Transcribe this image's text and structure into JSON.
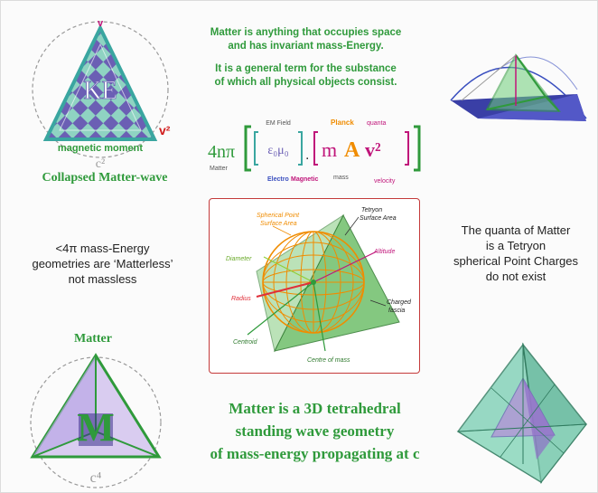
{
  "colors": {
    "green": "#2f9a3b",
    "dark_green": "#1f7a2e",
    "teal": "#3aa6a0",
    "purple": "#6b5fb4",
    "magenta": "#c0157a",
    "orange": "#f08c00",
    "blue": "#3a4fbf",
    "red_accent": "#d01a1a"
  },
  "definition": {
    "line1": "Matter is anything that occupies space",
    "line2": "and has invariant mass-Energy.",
    "line3": "It is a general term for the substance",
    "line4": "of which all physical objects consist."
  },
  "formula": {
    "prefix": "4nπ",
    "matter_label": "Matter",
    "em_field_label": "EM Field",
    "eps_mu": "ε₀μ₀",
    "dot": ".",
    "m": "m",
    "A": "A",
    "v2": "v²",
    "planck_label": "Planck",
    "quanta_label": "quanta",
    "electromagnetic_electro": "Electro",
    "electromagnetic_magnetic": "Magnetic",
    "mass_label": "mass",
    "velocity_label": "velocity"
  },
  "top_left": {
    "v_label": "v",
    "ke_label": "KE",
    "v2_label": "v²",
    "magnetic_moment": "magnetic moment",
    "c2": "c²",
    "caption": "Collapsed Matter-wave"
  },
  "middle_left": {
    "line1": "<4π mass-Energy",
    "line2": "geometries are ‘Matterless’",
    "line3": "not massless"
  },
  "middle_right": {
    "line1": "The quanta of Matter",
    "line2": "is a Tetryon",
    "line3": "spherical Point Charges",
    "line4": "do not exist"
  },
  "center_diagram": {
    "spherical_point_surface_area": [
      "Spherical Point",
      "Surface Area"
    ],
    "tetryon_surface_area": [
      "Tetryon",
      "Surface Area"
    ],
    "diameter": "Diameter",
    "altitude": "Altitude",
    "radius": "Radius",
    "charged_fascia": [
      "Charged",
      "fascia"
    ],
    "centroid": "Centroid",
    "centre_of_mass": "Centre of mass"
  },
  "bottom_left": {
    "title": "Matter",
    "m_label": "M",
    "c4": "c⁴"
  },
  "bottom_caption": {
    "line1": "Matter is a 3D tetrahedral",
    "line2": "standing wave geometry",
    "line3": "of mass-energy propagating at c"
  }
}
